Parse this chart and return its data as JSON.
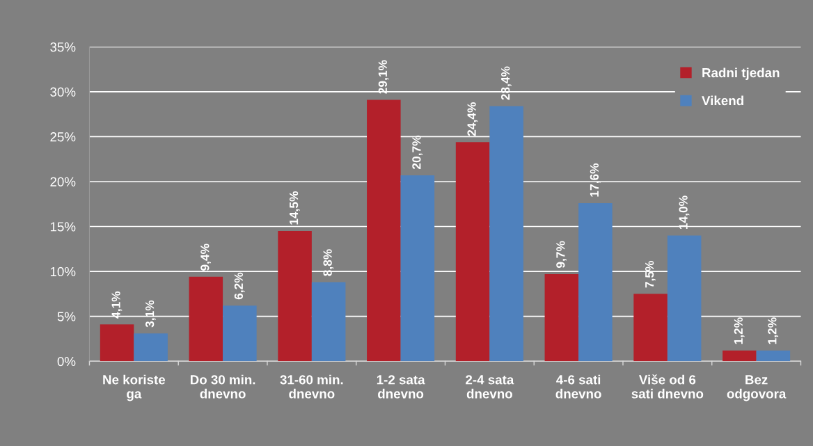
{
  "chart_data": {
    "type": "bar",
    "categories": [
      "Ne koriste\nga",
      "Do 30 min.\ndnevno",
      "31-60 min.\ndnevno",
      "1-2 sata\ndnevno",
      "2-4 sata\ndnevno",
      "4-6 sati\ndnevno",
      "Više od 6\nsati dnevno",
      "Bez\nodgovora"
    ],
    "series": [
      {
        "name": "Radni tjedan",
        "color": "#b3202a",
        "values": [
          4.1,
          9.4,
          14.5,
          29.1,
          24.4,
          9.7,
          7.5,
          1.2
        ],
        "value_labels": [
          "4,1%",
          "9,4%",
          "14,5%",
          "29,1%",
          "24,4%",
          "9,7%",
          "7,5%",
          "1,2%"
        ]
      },
      {
        "name": "Vikend",
        "color": "#4f81bd",
        "values": [
          3.1,
          6.2,
          8.8,
          20.7,
          28.4,
          17.6,
          14.0,
          1.2
        ],
        "value_labels": [
          "3,1%",
          "6,2%",
          "8,8%",
          "20,7%",
          "28,4%",
          "17,6%",
          "14,0%",
          "1,2%"
        ]
      }
    ],
    "ylim": [
      0,
      35
    ],
    "yticks": [
      {
        "value": 0,
        "label": "0%"
      },
      {
        "value": 5,
        "label": "5%"
      },
      {
        "value": 10,
        "label": "10%"
      },
      {
        "value": 15,
        "label": "15%"
      },
      {
        "value": 20,
        "label": "20%"
      },
      {
        "value": 25,
        "label": "25%"
      },
      {
        "value": 30,
        "label": "30%"
      },
      {
        "value": 35,
        "label": "35%"
      }
    ],
    "grid": "y",
    "legend": "top right"
  }
}
